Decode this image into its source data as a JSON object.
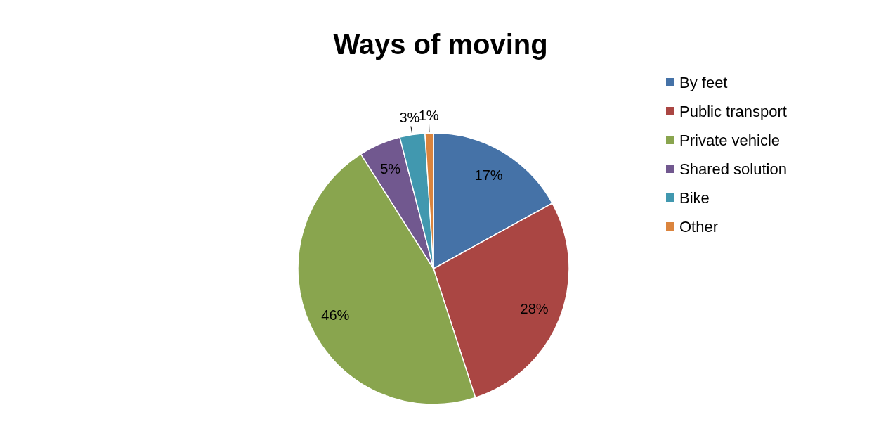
{
  "chart_data": {
    "type": "pie",
    "title": "Ways of moving",
    "categories": [
      "By feet",
      "Public transport",
      "Private vehicle",
      "Shared solution",
      "Bike",
      "Other"
    ],
    "values": [
      17,
      28,
      46,
      5,
      3,
      1
    ],
    "colors": [
      "#4572a7",
      "#aa4643",
      "#89a54e",
      "#71588f",
      "#4198af",
      "#db843d"
    ],
    "value_labels": [
      "17%",
      "28%",
      "46%",
      "5%",
      "3%",
      "1%"
    ],
    "legend": "right"
  }
}
